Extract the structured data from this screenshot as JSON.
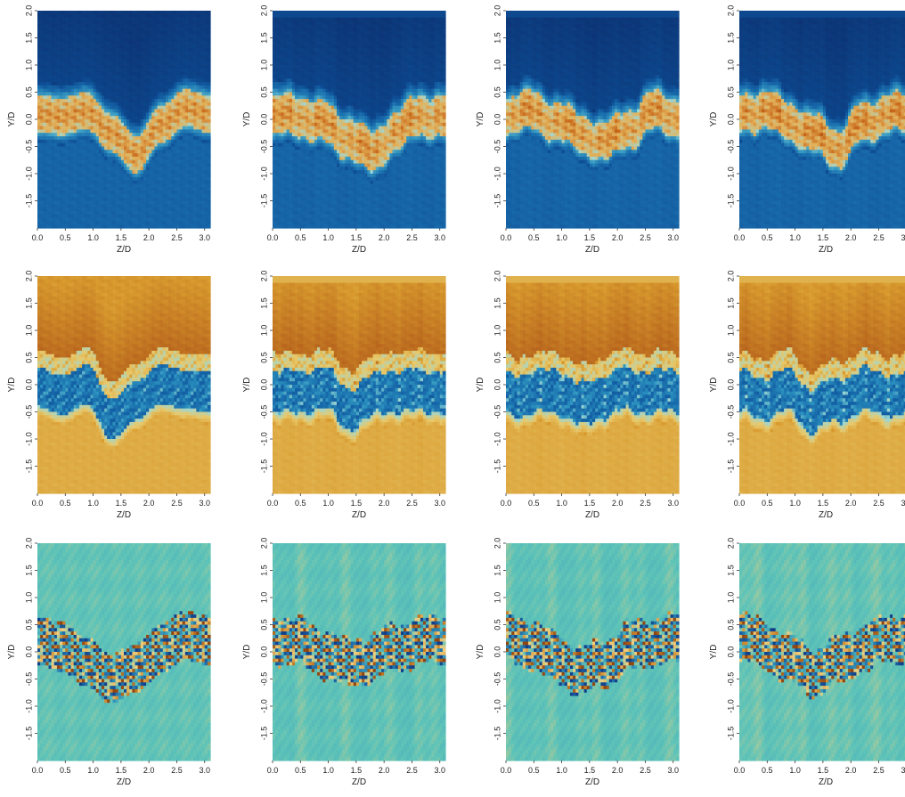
{
  "chart_data": {
    "type": "heatmap",
    "rows": 3,
    "cols": 4,
    "xlabel": "Z/D",
    "ylabel": "Y/D",
    "xlim": [
      0.0,
      3.1
    ],
    "ylim": [
      -2.0,
      2.0
    ],
    "x_ticks": [
      "0.0",
      "0.5",
      "1.0",
      "1.5",
      "2.0",
      "2.5",
      "3.0"
    ],
    "y_ticks": [
      "-1.5",
      "-1.0",
      "-0.5",
      "0.0",
      "0.5",
      "1.0",
      "1.5",
      "2.0"
    ],
    "colormaps": {
      "blue_orange": [
        "#0b2f6e",
        "#0e4d94",
        "#1a6fae",
        "#3b9ec4",
        "#9fd8d8",
        "#e3b35c",
        "#c96a1c",
        "#9a3d0c"
      ],
      "orange_blue": [
        "#0e3b86",
        "#1463a6",
        "#2d93c0",
        "#9ed7d2",
        "#e8c86a",
        "#d89a2e",
        "#b8661d",
        "#a24712"
      ],
      "teal_diverging": [
        "#103a86",
        "#1a67a8",
        "#3a9dbb",
        "#5fc4b8",
        "#f0d080",
        "#d08a2c",
        "#8a3c0c"
      ]
    },
    "panels": [
      {
        "row": 1,
        "col": 1,
        "field": "row1",
        "style": "smooth",
        "band_center": [
          0.1,
          0.05,
          0.15,
          -0.25,
          -0.65,
          -0.1,
          0.2,
          0.1
        ],
        "band_width": 0.75
      },
      {
        "row": 1,
        "col": 2,
        "field": "row1",
        "style": "streaky",
        "band_center": [
          0.05,
          0.1,
          -0.05,
          -0.3,
          -0.6,
          -0.2,
          0.1,
          0.05
        ],
        "band_width": 0.8
      },
      {
        "row": 1,
        "col": 3,
        "field": "row1",
        "style": "streaky",
        "band_center": [
          0.1,
          0.15,
          0.0,
          -0.25,
          -0.4,
          -0.15,
          0.15,
          0.05
        ],
        "band_width": 0.75
      },
      {
        "row": 1,
        "col": 4,
        "field": "row1",
        "style": "streaky",
        "band_center": [
          0.1,
          0.15,
          -0.05,
          -0.3,
          -0.55,
          -0.1,
          0.1,
          0.05
        ],
        "band_width": 0.75
      },
      {
        "row": 2,
        "col": 1,
        "field": "row2",
        "style": "smooth",
        "band_center": [
          0.05,
          -0.1,
          0.1,
          -0.55,
          -0.2,
          0.1,
          0.0,
          -0.05
        ],
        "band_width": 0.9
      },
      {
        "row": 2,
        "col": 2,
        "field": "row2",
        "style": "streaky",
        "band_center": [
          0.0,
          -0.1,
          0.05,
          -0.35,
          -0.15,
          0.0,
          -0.05,
          0.0
        ],
        "band_width": 0.95
      },
      {
        "row": 2,
        "col": 3,
        "field": "row2",
        "style": "streaky",
        "band_center": [
          -0.05,
          -0.1,
          0.0,
          -0.3,
          -0.1,
          0.0,
          -0.05,
          -0.05
        ],
        "band_width": 0.95
      },
      {
        "row": 2,
        "col": 4,
        "field": "row2",
        "style": "streaky",
        "band_center": [
          -0.05,
          -0.1,
          0.0,
          -0.35,
          -0.15,
          0.0,
          -0.05,
          -0.05
        ],
        "band_width": 0.95
      },
      {
        "row": 3,
        "col": 1,
        "field": "row3",
        "style": "smooth",
        "band_center": [
          0.2,
          0.1,
          -0.2,
          -0.5,
          -0.3,
          0.05,
          0.3,
          0.2
        ],
        "band_width": 0.9
      },
      {
        "row": 3,
        "col": 2,
        "field": "row3",
        "style": "streaky",
        "band_center": [
          0.25,
          0.2,
          0.0,
          -0.2,
          -0.1,
          0.1,
          0.2,
          0.25
        ],
        "band_width": 0.85
      },
      {
        "row": 3,
        "col": 3,
        "field": "row3",
        "style": "streaky",
        "band_center": [
          0.25,
          0.15,
          -0.1,
          -0.35,
          -0.2,
          0.1,
          0.2,
          0.25
        ],
        "band_width": 0.85
      },
      {
        "row": 3,
        "col": 4,
        "field": "row3",
        "style": "streaky",
        "band_center": [
          0.25,
          0.1,
          -0.15,
          -0.4,
          -0.2,
          0.05,
          0.2,
          0.25
        ],
        "band_width": 0.85
      }
    ]
  }
}
